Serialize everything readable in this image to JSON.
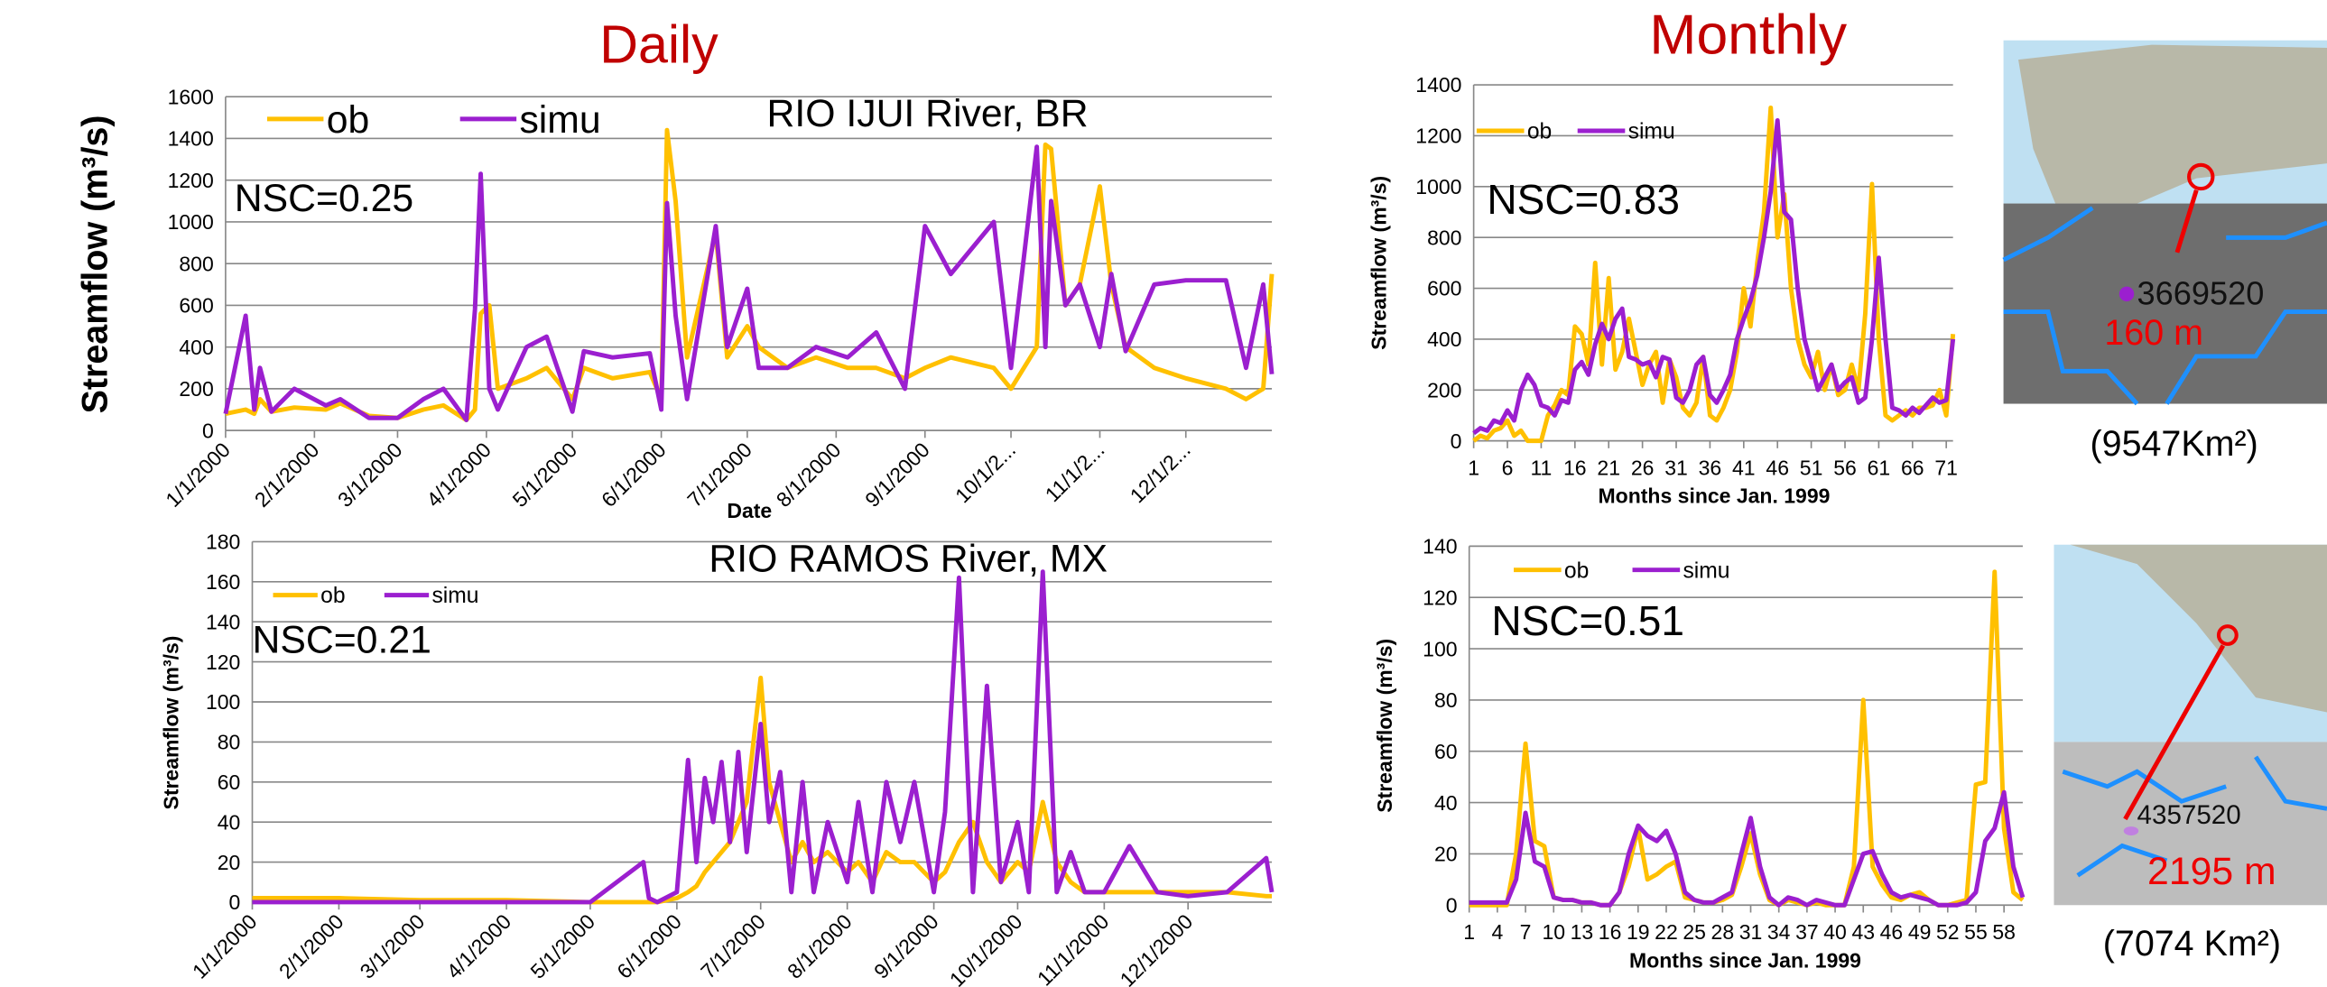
{
  "chart_data": [
    {
      "type": "line",
      "title": "Daily",
      "annotations": [
        "RIO IJUI River, BR",
        "NSC=0.25"
      ],
      "y_label": "Streamflow (m³/s)",
      "x_label": "Date",
      "x": [
        "1/1/2000",
        "1/8/2000",
        "1/11/2000",
        "1/13/2000",
        "1/17/2000",
        "1/25/2000",
        "2/5/2000",
        "2/10/2000",
        "2/20/2000",
        "3/1/2000",
        "3/10/2000",
        "3/17/2000",
        "3/25/2000",
        "3/28/2000",
        "3/30/2000",
        "4/2/2000",
        "4/5/2000",
        "4/15/2000",
        "4/22/2000",
        "5/1/2000",
        "5/5/2000",
        "5/15/2000",
        "5/28/2000",
        "6/1/2000",
        "6/3/2000",
        "6/6/2000",
        "6/10/2000",
        "6/20/2000",
        "6/24/2000",
        "7/1/2000",
        "7/5/2000",
        "7/15/2000",
        "7/25/2000",
        "8/5/2000",
        "8/15/2000",
        "8/25/2000",
        "9/1/2000",
        "9/10/2000",
        "9/25/2000",
        "10/1/2000",
        "10/10/2000",
        "10/13/2000",
        "10/15/2000",
        "10/20/2000",
        "10/25/2000",
        "11/1/2000",
        "11/5/2000",
        "11/10/2000",
        "11/20/2000",
        "12/1/2000",
        "12/15/2000",
        "12/22/2000",
        "12/28/2000",
        "12/31/2000"
      ],
      "series": [
        {
          "name": "ob",
          "color": "#ffc000",
          "values": [
            80,
            100,
            80,
            150,
            90,
            110,
            100,
            130,
            70,
            60,
            100,
            120,
            50,
            100,
            560,
            600,
            200,
            250,
            300,
            150,
            300,
            250,
            280,
            150,
            1440,
            1100,
            350,
            950,
            350,
            500,
            400,
            300,
            350,
            300,
            300,
            250,
            300,
            350,
            300,
            200,
            400,
            1370,
            1350,
            600,
            700,
            1170,
            700,
            400,
            300,
            250,
            200,
            150,
            200,
            750
          ]
        },
        {
          "name": "simu",
          "color": "#9b1fcf",
          "values": [
            80,
            550,
            100,
            300,
            90,
            200,
            120,
            150,
            60,
            60,
            150,
            200,
            50,
            580,
            1230,
            200,
            100,
            400,
            450,
            90,
            380,
            350,
            370,
            100,
            1090,
            550,
            150,
            980,
            400,
            680,
            300,
            300,
            400,
            350,
            470,
            200,
            980,
            750,
            1000,
            300,
            1360,
            400,
            1100,
            600,
            700,
            400,
            750,
            380,
            700,
            720,
            720,
            300,
            700,
            270
          ]
        }
      ],
      "xlim": [
        "1/1/2000",
        "12/31/2000"
      ],
      "xticks": [
        "1/1/2000",
        "2/1/2000",
        "3/1/2000",
        "4/1/2000",
        "5/1/2000",
        "6/1/2000",
        "7/1/2000",
        "8/1/2000",
        "9/1/2000",
        {
          "value": "10/1/2000",
          "label": "10/1/2..."
        },
        {
          "value": "11/1/2000",
          "label": "11/1/2..."
        },
        {
          "value": "12/1/2000",
          "label": "12/1/2..."
        }
      ],
      "ylim": [
        0,
        1600
      ],
      "yticks": [
        0,
        200,
        400,
        600,
        800,
        1000,
        1200,
        1400,
        1600
      ],
      "grid": true
    },
    {
      "type": "line",
      "annotations": [
        "RIO RAMOS River, MX",
        "NSC=0.21"
      ],
      "y_label": "Streamflow (m³/s)",
      "x": [
        "1/1/2000",
        "2/1/2000",
        "3/1/2000",
        "4/1/2000",
        "5/1/2000",
        "5/20/2000",
        "5/22/2000",
        "5/25/2000",
        "6/1/2000",
        "6/5/2000",
        "6/8/2000",
        "6/11/2000",
        "6/14/2000",
        "6/17/2000",
        "6/20/2000",
        "6/23/2000",
        "6/26/2000",
        "7/1/2000",
        "7/4/2000",
        "7/8/2000",
        "7/12/2000",
        "7/16/2000",
        "7/20/2000",
        "7/25/2000",
        "8/1/2000",
        "8/5/2000",
        "8/10/2000",
        "8/15/2000",
        "8/20/2000",
        "8/25/2000",
        "9/1/2000",
        "9/5/2000",
        "9/10/2000",
        "9/15/2000",
        "9/20/2000",
        "9/25/2000",
        "10/1/2000",
        "10/5/2000",
        "10/10/2000",
        "10/15/2000",
        "10/20/2000",
        "10/25/2000",
        "11/1/2000",
        "11/10/2000",
        "11/20/2000",
        "12/1/2000",
        "12/15/2000",
        "12/29/2000",
        "12/31/2000"
      ],
      "series": [
        {
          "name": "ob",
          "color": "#ffc000",
          "values": [
            2,
            2,
            1,
            1,
            0,
            0,
            0,
            0,
            2,
            5,
            8,
            15,
            20,
            25,
            30,
            40,
            50,
            112,
            60,
            40,
            20,
            30,
            20,
            25,
            15,
            20,
            10,
            25,
            20,
            20,
            10,
            15,
            30,
            40,
            20,
            10,
            20,
            15,
            50,
            20,
            10,
            5,
            5,
            5,
            5,
            5,
            5,
            3,
            3
          ]
        },
        {
          "name": "simu",
          "color": "#9b1fcf",
          "values": [
            0,
            0,
            0,
            0,
            0,
            20,
            2,
            0,
            5,
            71,
            20,
            62,
            40,
            70,
            30,
            75,
            25,
            89,
            40,
            65,
            5,
            60,
            5,
            40,
            10,
            50,
            5,
            60,
            30,
            60,
            5,
            45,
            162,
            5,
            108,
            10,
            40,
            5,
            165,
            5,
            25,
            5,
            5,
            28,
            5,
            3,
            5,
            22,
            5
          ]
        }
      ],
      "xlim": [
        "1/1/2000",
        "12/31/2000"
      ],
      "xticks": [
        "1/1/2000",
        "2/1/2000",
        "3/1/2000",
        "4/1/2000",
        "5/1/2000",
        "6/1/2000",
        "7/1/2000",
        "8/1/2000",
        "9/1/2000",
        "10/1/2000",
        "11/1/2000",
        "12/1/2000"
      ],
      "ylim": [
        0,
        180
      ],
      "yticks": [
        0,
        20,
        40,
        60,
        80,
        100,
        120,
        140,
        160,
        180
      ],
      "grid": true
    },
    {
      "type": "line",
      "title": "Monthly",
      "annotations": [
        "NSC=0.83"
      ],
      "y_label": "Streamflow (m³/s)",
      "x_label": "Months since Jan. 1999",
      "x": [
        1,
        2,
        3,
        4,
        5,
        6,
        7,
        8,
        9,
        10,
        11,
        12,
        13,
        14,
        15,
        16,
        17,
        18,
        19,
        20,
        21,
        22,
        23,
        24,
        25,
        26,
        27,
        28,
        29,
        30,
        31,
        32,
        33,
        34,
        35,
        36,
        37,
        38,
        39,
        40,
        41,
        42,
        43,
        44,
        45,
        46,
        47,
        48,
        49,
        50,
        51,
        52,
        53,
        54,
        55,
        56,
        57,
        58,
        59,
        60,
        61,
        62,
        63,
        64,
        65,
        66,
        67,
        68,
        69,
        70,
        71,
        72
      ],
      "series": [
        {
          "name": "ob",
          "color": "#ffc000",
          "values": [
            0,
            20,
            10,
            40,
            50,
            80,
            20,
            40,
            0,
            0,
            0,
            100,
            140,
            200,
            180,
            450,
            420,
            300,
            700,
            300,
            640,
            280,
            350,
            480,
            350,
            220,
            300,
            350,
            150,
            320,
            250,
            130,
            100,
            150,
            330,
            100,
            80,
            130,
            200,
            350,
            600,
            450,
            700,
            900,
            1310,
            800,
            970,
            600,
            400,
            300,
            250,
            350,
            200,
            300,
            180,
            200,
            300,
            200,
            500,
            1010,
            400,
            100,
            80,
            100,
            120,
            100,
            130,
            130,
            140,
            200,
            100,
            420
          ]
        },
        {
          "name": "simu",
          "color": "#9b1fcf",
          "values": [
            30,
            50,
            40,
            80,
            70,
            120,
            80,
            200,
            260,
            220,
            140,
            130,
            100,
            160,
            150,
            280,
            310,
            260,
            380,
            460,
            400,
            480,
            520,
            330,
            320,
            300,
            310,
            250,
            330,
            320,
            170,
            150,
            200,
            300,
            330,
            180,
            150,
            200,
            260,
            400,
            480,
            550,
            650,
            800,
            980,
            1260,
            900,
            870,
            600,
            400,
            300,
            200,
            250,
            300,
            200,
            230,
            250,
            150,
            170,
            400,
            720,
            400,
            130,
            120,
            100,
            130,
            110,
            140,
            170,
            150,
            160,
            400
          ]
        }
      ],
      "xlim": [
        1,
        72
      ],
      "xticks": [
        1,
        6,
        11,
        16,
        21,
        26,
        31,
        36,
        41,
        46,
        51,
        56,
        61,
        66,
        71
      ],
      "ylim": [
        0,
        1400
      ],
      "yticks": [
        0,
        200,
        400,
        600,
        800,
        1000,
        1200,
        1400
      ],
      "grid": true
    },
    {
      "type": "line",
      "annotations": [
        "NSC=0.51"
      ],
      "y_label": "Streamflow (m³/s)",
      "x_label": "Months since Jan. 1999",
      "x": [
        1,
        2,
        3,
        4,
        5,
        6,
        7,
        8,
        9,
        10,
        11,
        12,
        13,
        14,
        15,
        16,
        17,
        18,
        19,
        20,
        21,
        22,
        23,
        24,
        25,
        26,
        27,
        28,
        29,
        30,
        31,
        32,
        33,
        34,
        35,
        36,
        37,
        38,
        39,
        40,
        41,
        42,
        43,
        44,
        45,
        46,
        47,
        48,
        49,
        50,
        51,
        52,
        53,
        54,
        55,
        56,
        57,
        58,
        59,
        60
      ],
      "series": [
        {
          "name": "ob",
          "color": "#ffc000",
          "values": [
            0,
            0,
            0,
            0,
            0,
            20,
            63,
            25,
            23,
            3,
            2,
            2,
            1,
            1,
            0,
            0,
            5,
            15,
            30,
            10,
            12,
            15,
            17,
            3,
            2,
            1,
            1,
            2,
            4,
            15,
            28,
            12,
            2,
            0,
            2,
            1,
            0,
            1,
            0,
            0,
            0,
            15,
            80,
            15,
            8,
            3,
            2,
            4,
            5,
            2,
            0,
            0,
            1,
            2,
            47,
            48,
            130,
            30,
            5,
            2
          ]
        },
        {
          "name": "simu",
          "color": "#9b1fcf",
          "values": [
            1,
            1,
            1,
            1,
            1,
            10,
            36,
            17,
            15,
            3,
            2,
            2,
            1,
            1,
            0,
            0,
            5,
            20,
            31,
            27,
            25,
            29,
            20,
            5,
            2,
            1,
            1,
            3,
            5,
            20,
            34,
            15,
            3,
            0,
            3,
            2,
            0,
            2,
            1,
            0,
            0,
            10,
            20,
            21,
            12,
            5,
            3,
            4,
            3,
            2,
            0,
            0,
            0,
            1,
            5,
            25,
            30,
            44,
            15,
            3
          ]
        }
      ],
      "xlim": [
        1,
        60
      ],
      "xticks": [
        1,
        4,
        7,
        10,
        13,
        16,
        19,
        22,
        25,
        28,
        31,
        34,
        37,
        40,
        43,
        46,
        49,
        52,
        55,
        58
      ],
      "ylim": [
        0,
        140
      ],
      "yticks": [
        0,
        20,
        40,
        60,
        80,
        100,
        120,
        140
      ],
      "grid": true
    }
  ],
  "maps": [
    {
      "station": "3669520",
      "elevation": "160 m",
      "area": "(9547Km²)"
    },
    {
      "station": "4357520",
      "elevation": "2195 m",
      "area": "(7074 Km²)"
    }
  ]
}
